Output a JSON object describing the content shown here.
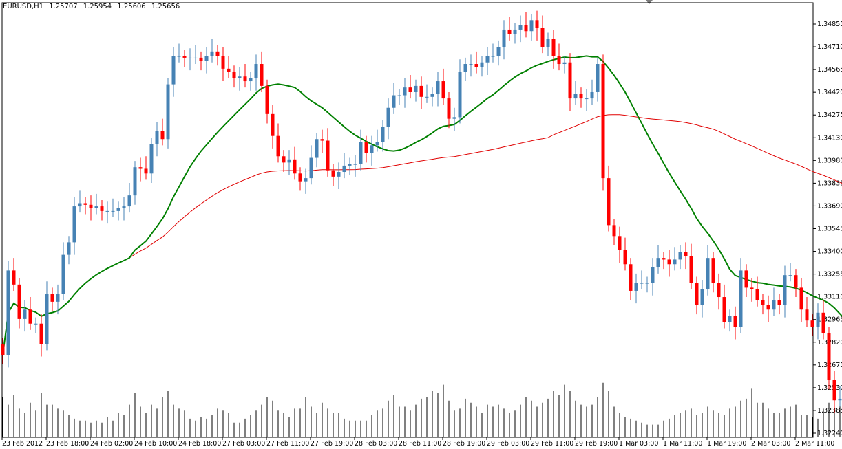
{
  "header": {
    "symbol": "EURUSD,H1",
    "open": "1.25707",
    "high": "1.25954",
    "low": "1.25606",
    "close": "1.25656"
  },
  "colors": {
    "bull": "#4682b4",
    "bear": "#ff0000",
    "ma_fast": "#008000",
    "ma_slow": "#e00000",
    "volume": "#000000",
    "grid": "#000000"
  },
  "chart_data": {
    "type": "candlestick",
    "y_ticks": [
      "1.34855",
      "1.34710",
      "1.34565",
      "1.34420",
      "1.34275",
      "1.34130",
      "1.33980",
      "1.33835",
      "1.33690",
      "1.33545",
      "1.33400",
      "1.33255",
      "1.33110",
      "1.32965",
      "1.32820",
      "1.32675",
      "1.32530",
      "1.32385",
      "1.32240"
    ],
    "x_ticks": [
      "23 Feb 2012",
      "23 Feb 18:00",
      "24 Feb 02:00",
      "24 Feb 10:00",
      "24 Feb 18:00",
      "27 Feb 03:00",
      "27 Feb 11:00",
      "27 Feb 19:00",
      "28 Feb 03:00",
      "28 Feb 11:00",
      "28 Feb 19:00",
      "29 Feb 03:00",
      "29 Feb 11:00",
      "29 Feb 19:00",
      "1 Mar 03:00",
      "1 Mar 11:00",
      "1 Mar 19:00",
      "2 Mar 03:00",
      "2 Mar 11:00"
    ],
    "ylim": [
      1.3224,
      1.3493
    ],
    "closes": [
      1.3274,
      1.3328,
      1.3319,
      1.3297,
      1.3303,
      1.3294,
      1.3294,
      1.3281,
      1.3313,
      1.3308,
      1.3313,
      1.3338,
      1.3346,
      1.3369,
      1.3371,
      1.337,
      1.3368,
      1.3369,
      1.3366,
      1.3366,
      1.3366,
      1.3368,
      1.3369,
      1.3376,
      1.3394,
      1.3393,
      1.339,
      1.3409,
      1.3417,
      1.3412,
      1.3447,
      1.3465,
      1.3465,
      1.3464,
      1.3464,
      1.3464,
      1.3462,
      1.3465,
      1.3468,
      1.3465,
      1.3457,
      1.3455,
      1.3451,
      1.3452,
      1.3449,
      1.3451,
      1.346,
      1.3446,
      1.3428,
      1.3414,
      1.3401,
      1.3397,
      1.3399,
      1.339,
      1.3385,
      1.3387,
      1.34,
      1.3412,
      1.3411,
      1.3392,
      1.3388,
      1.3391,
      1.3395,
      1.3396,
      1.3396,
      1.341,
      1.3403,
      1.3408,
      1.341,
      1.342,
      1.3432,
      1.344,
      1.344,
      1.3445,
      1.3442,
      1.3446,
      1.3439,
      1.3439,
      1.3441,
      1.3449,
      1.3438,
      1.3425,
      1.3426,
      1.3455,
      1.346,
      1.346,
      1.3458,
      1.3461,
      1.3465,
      1.3465,
      1.3471,
      1.3482,
      1.3479,
      1.3482,
      1.3485,
      1.3481,
      1.3488,
      1.3483,
      1.3471,
      1.3476,
      1.3465,
      1.346,
      1.3461,
      1.3438,
      1.3441,
      1.3438,
      1.3438,
      1.3442,
      1.346,
      1.3387,
      1.3357,
      1.335,
      1.3341,
      1.3332,
      1.3315,
      1.332,
      1.332,
      1.332,
      1.333,
      1.3336,
      1.3335,
      1.3332,
      1.3335,
      1.334,
      1.3337,
      1.332,
      1.3306,
      1.3316,
      1.3336,
      1.332,
      1.3311,
      1.3295,
      1.3299,
      1.3292,
      1.3328,
      1.3317,
      1.3316,
      1.3309,
      1.3306,
      1.3303,
      1.3309,
      1.3306,
      1.3325,
      1.3325,
      1.3317,
      1.3303,
      1.3296,
      1.3292,
      1.3301,
      1.3288,
      1.3258,
      1.3245,
      1.3246,
      1.3233,
      1.3227
    ],
    "volumes": [
      2.0,
      1.6,
      2.1,
      1.4,
      1.2,
      1.7,
      1.3,
      2.2,
      1.6,
      1.6,
      1.4,
      1.3,
      1.1,
      0.9,
      0.8,
      0.8,
      0.7,
      0.8,
      0.7,
      1.0,
      0.8,
      1.2,
      1.1,
      1.6,
      2.2,
      1.5,
      1.2,
      1.6,
      1.4,
      2.0,
      2.3,
      1.6,
      1.4,
      1.3,
      0.9,
      0.8,
      1.0,
      0.9,
      1.1,
      1.4,
      1.3,
      1.2,
      0.7,
      0.7,
      0.9,
      1.1,
      1.3,
      1.6,
      2.0,
      1.8,
      1.3,
      1.2,
      1.0,
      1.4,
      1.4,
      2.0,
      1.5,
      1.2,
      1.7,
      1.4,
      1.2,
      1.2,
      0.9,
      0.8,
      0.8,
      0.8,
      0.8,
      1.1,
      1.3,
      1.4,
      1.8,
      2.1,
      1.5,
      1.5,
      1.3,
      1.6,
      1.9,
      2.0,
      2.3,
      2.2,
      2.6,
      1.8,
      1.3,
      1.4,
      1.9,
      1.7,
      1.5,
      1.2,
      1.6,
      1.5,
      1.6,
      1.4,
      1.2,
      1.3,
      1.6,
      2.0,
      1.8,
      1.5,
      1.7,
      1.9,
      2.3,
      2.1,
      2.6,
      2.3,
      1.8,
      1.6,
      1.5,
      1.6,
      2.0,
      2.7,
      2.3,
      1.5,
      1.2,
      1.0,
      0.9,
      0.8,
      0.7,
      0.6,
      0.6,
      0.6,
      0.8,
      0.9,
      1.1,
      1.2,
      1.3,
      1.4,
      1.1,
      1.2,
      1.5,
      1.3,
      1.2,
      1.1,
      1.4,
      1.5,
      1.8,
      1.9,
      2.4,
      1.7,
      1.7,
      1.4,
      1.2,
      1.2,
      1.4,
      1.5,
      1.6,
      1.1,
      1.1,
      1.0,
      0.9,
      1.4,
      1.7,
      1.9,
      2.1,
      1.5,
      1.8
    ]
  }
}
